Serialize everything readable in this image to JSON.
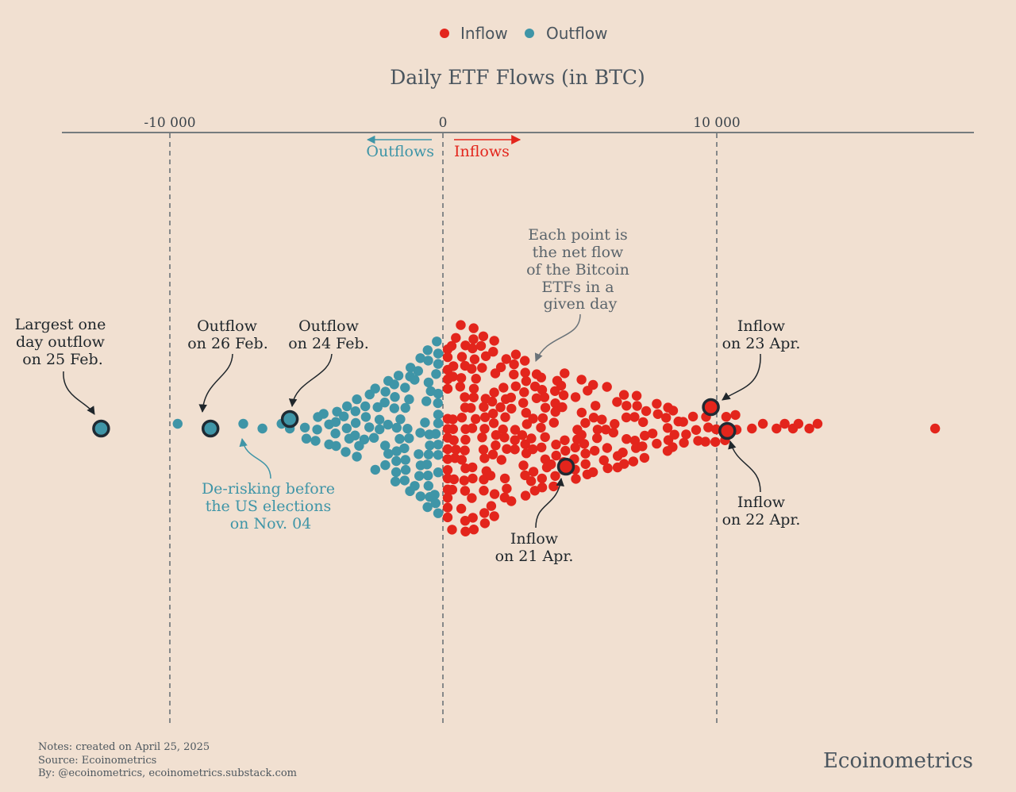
{
  "legend": {
    "inflow_label": "Inflow",
    "outflow_label": "Outflow"
  },
  "colors": {
    "inflow": "#e3251c",
    "outflow": "#3f95a7",
    "background": "#f1e0d1",
    "axis": "#4d5a63",
    "highlight_ring": "#1f2a33"
  },
  "chart_data": {
    "type": "scatter",
    "subtype": "beeswarm",
    "title": "Daily ETF Flows (in BTC)",
    "x_axis_position": "top",
    "xlim": [
      -14000,
      19500
    ],
    "x_ticks": [
      {
        "value": -10000,
        "label": "-10 000"
      },
      {
        "value": 0,
        "label": "0"
      },
      {
        "value": 10000,
        "label": "10 000"
      }
    ],
    "gridlines": "dashed vertical at each tick",
    "direction_labels": {
      "negative": "Outflows",
      "positive": "Inflows"
    },
    "series": [
      {
        "name": "Outflow",
        "color": "#3f95a7",
        "approx_points": 210,
        "range": [
          -12500,
          0
        ],
        "outliers": [
          -12500,
          -9700,
          -8500,
          -7300,
          -6600,
          -5900,
          -5600
        ]
      },
      {
        "name": "Inflow",
        "color": "#e3251c",
        "approx_points": 380,
        "range": [
          0,
          18000
        ],
        "outliers": [
          11300,
          11700,
          12200,
          12500,
          12800,
          13000,
          13400,
          13700,
          18000
        ]
      }
    ],
    "highlighted": [
      {
        "value": -12500,
        "label": "Largest one day outflow on 25 Feb."
      },
      {
        "value": -8500,
        "label": "Outflow on 26 Feb."
      },
      {
        "value": -5600,
        "label": "Outflow on 24 Feb."
      },
      {
        "value": 4500,
        "label": "Inflow on 21 Apr."
      },
      {
        "value": 9800,
        "label": "Inflow on 23 Apr."
      },
      {
        "value": 10400,
        "label": "Inflow on 22 Apr."
      }
    ]
  },
  "annotations": {
    "largest_outflow": [
      "Largest one",
      "day outflow",
      "on 25 Feb."
    ],
    "outflow_26feb": [
      "Outflow",
      "on 26 Feb."
    ],
    "outflow_24feb": [
      "Outflow",
      "on 24 Feb."
    ],
    "each_point": [
      "Each point is",
      "the net flow",
      "of the Bitcoin",
      "ETFs in a",
      "given day"
    ],
    "derisking": [
      "De-risking before",
      "the US elections",
      "on Nov. 04"
    ],
    "inflow_23apr": [
      "Inflow",
      "on 23 Apr."
    ],
    "inflow_22apr": [
      "Inflow",
      "on 22 Apr."
    ],
    "inflow_21apr": [
      "Inflow",
      "on 21 Apr."
    ]
  },
  "footer": {
    "notes": "Notes: created on April 25, 2025",
    "source": "Source: Ecoinometrics",
    "by": "By: @ecoinometrics, ecoinometrics.substack.com",
    "brand": "Ecoinometrics"
  }
}
